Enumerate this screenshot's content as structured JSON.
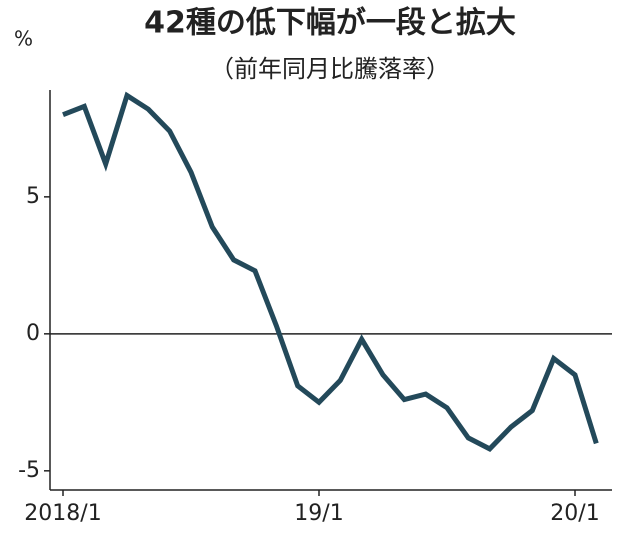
{
  "chart_data": {
    "type": "line",
    "title": "42種の低下幅が一段と拡大",
    "subtitle": "（前年同月比騰落率）",
    "y_unit": "%",
    "categories": [
      "2018/1",
      null,
      null,
      null,
      null,
      null,
      null,
      null,
      null,
      null,
      null,
      null,
      "19/1",
      null,
      null,
      null,
      null,
      null,
      null,
      null,
      null,
      null,
      null,
      null,
      "20/1",
      null
    ],
    "series": [
      {
        "name": null,
        "color": "#23495a",
        "values": [
          8.0,
          8.3,
          6.2,
          8.7,
          8.2,
          7.4,
          5.9,
          3.9,
          2.7,
          2.3,
          0.3,
          -1.9,
          -2.5,
          -1.7,
          -0.2,
          -1.5,
          -2.4,
          -2.2,
          -2.7,
          -3.8,
          -4.2,
          -3.4,
          -2.8,
          -0.9,
          -1.5,
          -4.0
        ]
      }
    ],
    "ylim": [
      -5.7,
      8.9
    ],
    "yticks": [
      -5,
      0,
      5
    ],
    "zero_line": true
  }
}
